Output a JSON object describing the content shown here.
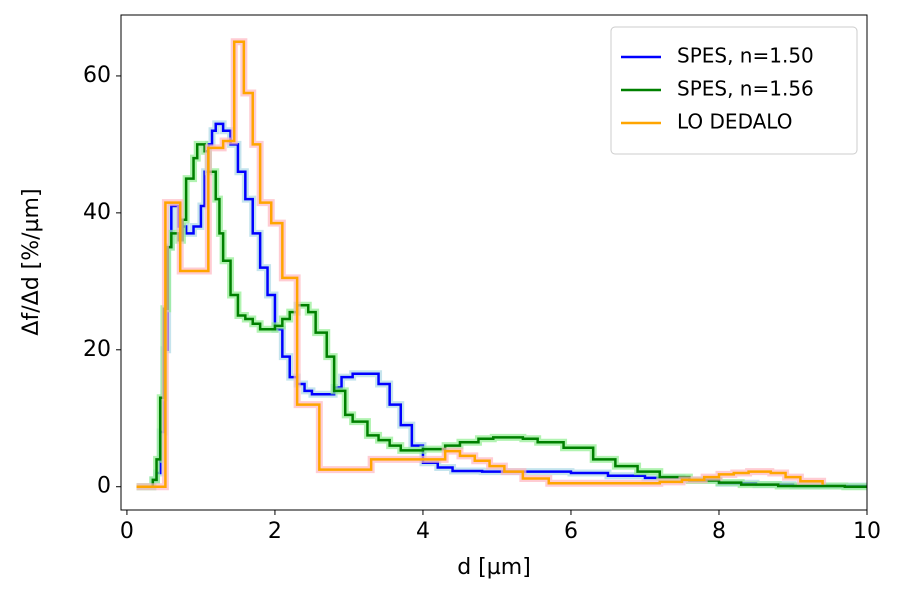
{
  "chart_data": {
    "type": "line",
    "drawstyle": "steps-post",
    "xlabel": "d [µm]",
    "ylabel": "Δf/Δd [%/µm]",
    "xlim": [
      -0.08,
      10
    ],
    "ylim": [
      -3.4,
      68.9
    ],
    "xticks": [
      0,
      2,
      4,
      6,
      8,
      10
    ],
    "yticks": [
      0,
      20,
      40,
      60
    ],
    "legend": "upper right",
    "grid": false,
    "series": [
      {
        "name": "SPES, n=1.50",
        "color": "#0000ff",
        "band_color": "#add8e6",
        "x": [
          0.13,
          0.35,
          0.4,
          0.45,
          0.5,
          0.55,
          0.6,
          0.65,
          0.7,
          0.8,
          0.9,
          1.0,
          1.05,
          1.1,
          1.15,
          1.2,
          1.3,
          1.4,
          1.5,
          1.6,
          1.7,
          1.8,
          1.9,
          2.0,
          2.1,
          2.2,
          2.3,
          2.4,
          2.5,
          2.8,
          2.9,
          3.05,
          3.4,
          3.55,
          3.7,
          3.85,
          4.0,
          4.2,
          4.4,
          4.8,
          5.5,
          6.0,
          6.5,
          7.0,
          7.5,
          8.0,
          8.5,
          9.0,
          10
        ],
        "values": [
          0,
          1,
          2,
          8,
          20,
          35,
          41,
          41,
          38,
          37,
          38,
          41,
          46,
          50,
          52,
          53,
          52,
          50,
          46,
          42,
          37,
          32,
          28,
          23,
          19,
          16,
          15,
          14,
          13.5,
          14.5,
          16,
          16.5,
          15,
          12,
          9,
          6,
          3.5,
          2.8,
          2.3,
          2.2,
          2.2,
          2.0,
          1.6,
          1.3,
          1.0,
          0.5,
          0.3,
          0.1,
          0.1
        ]
      },
      {
        "name": "SPES, n=1.56",
        "color": "#008000",
        "band_color": "#90ee90",
        "x": [
          0.13,
          0.35,
          0.4,
          0.45,
          0.5,
          0.55,
          0.6,
          0.7,
          0.75,
          0.8,
          0.9,
          0.95,
          1.05,
          1.1,
          1.2,
          1.25,
          1.3,
          1.4,
          1.5,
          1.6,
          1.7,
          1.8,
          2.0,
          2.1,
          2.2,
          2.3,
          2.45,
          2.55,
          2.7,
          2.8,
          2.95,
          3.05,
          3.25,
          3.4,
          3.55,
          3.7,
          4.0,
          4.3,
          4.5,
          4.75,
          4.95,
          5.35,
          5.55,
          5.9,
          6.3,
          6.6,
          6.9,
          7.2,
          7.6,
          8.0,
          8.3,
          8.8,
          9.7,
          10
        ],
        "values": [
          0,
          1,
          4,
          13,
          26,
          35,
          37,
          36,
          39,
          45,
          48,
          50,
          49,
          46,
          42,
          37,
          33,
          28,
          25,
          24.5,
          23.8,
          23,
          23.5,
          24.5,
          25.5,
          26.5,
          25.5,
          22.5,
          19,
          14,
          10.5,
          9.5,
          7.5,
          6.8,
          6,
          5.3,
          5.5,
          6,
          6.5,
          7,
          7.2,
          7,
          6.5,
          5.7,
          4,
          3,
          2.2,
          1.4,
          0.9,
          0.6,
          0.3,
          0.1,
          0,
          0
        ]
      },
      {
        "name": "LO DEDALO",
        "color": "#ffa500",
        "band_color": "#ffb6c1",
        "x": [
          0.13,
          0.52,
          0.72,
          1.1,
          1.3,
          1.45,
          1.58,
          1.7,
          1.8,
          1.95,
          2.1,
          2.3,
          2.6,
          3.3,
          4.3,
          4.5,
          4.7,
          4.9,
          5.1,
          5.35,
          5.7,
          7.2,
          7.5,
          7.8,
          8.0,
          8.2,
          8.4,
          8.7,
          8.9,
          9.1,
          9.4
        ],
        "values": [
          0,
          41.5,
          31.5,
          49.5,
          50.5,
          65,
          57.5,
          50,
          41.5,
          38.5,
          30.5,
          12,
          2.5,
          4,
          5.2,
          4.5,
          3.8,
          3,
          2.2,
          1.2,
          0.5,
          0.7,
          1.0,
          1.4,
          1.8,
          2.0,
          2.2,
          2,
          1.4,
          0.8,
          0.3
        ]
      }
    ]
  }
}
